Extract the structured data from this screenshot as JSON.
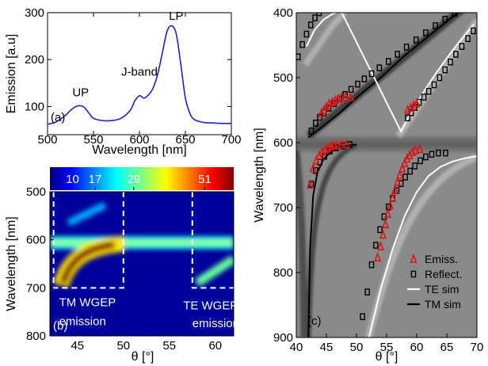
{
  "chart_data": [
    {
      "panel": "(a)",
      "type": "line",
      "xlabel": "Wavelength [nm]",
      "ylabel": "Emission [a.u]",
      "xlim": [
        500,
        700
      ],
      "ylim": [
        40,
        300
      ],
      "xticks": [
        500,
        550,
        600,
        650,
        700
      ],
      "yticks": [
        100,
        200,
        300
      ],
      "color": "#1f1fd6",
      "x": [
        500,
        510,
        520,
        525,
        530,
        535,
        540,
        545,
        550,
        560,
        570,
        580,
        590,
        595,
        600,
        605,
        610,
        615,
        620,
        625,
        630,
        635,
        640,
        645,
        650,
        655,
        660,
        670,
        680,
        690,
        700
      ],
      "y": [
        62,
        68,
        82,
        92,
        99,
        102,
        98,
        86,
        75,
        70,
        70,
        75,
        92,
        112,
        123,
        118,
        125,
        140,
        170,
        215,
        260,
        272,
        255,
        190,
        118,
        85,
        72,
        66,
        65,
        64,
        64
      ],
      "annotations": [
        {
          "text": "UP",
          "x": 536,
          "y": 122
        },
        {
          "text": "J-band",
          "x": 600,
          "y": 166
        },
        {
          "text": "LP",
          "x": 640,
          "y": 285
        }
      ]
    },
    {
      "panel": "(b)",
      "type": "heatmap",
      "xlabel": "θ [°]",
      "ylabel": "Wavelength [nm]",
      "xlim": [
        42,
        62
      ],
      "ylim": [
        800,
        500
      ],
      "xticks": [
        45,
        50,
        55,
        60
      ],
      "yticks": [
        500,
        600,
        700,
        800
      ],
      "colorbar_ticks": [
        10,
        17,
        29,
        51
      ],
      "colorbar_range": [
        3,
        60
      ],
      "colormap": "jet",
      "features": [
        {
          "name": "main band",
          "x": [
            42,
            62
          ],
          "y": 606,
          "value": 25
        },
        {
          "name": "TM WGEP emission",
          "x": [
            43,
            50
          ],
          "y": [
            690,
            610
          ],
          "value": 60
        },
        {
          "name": "upper TM",
          "x": [
            44,
            48
          ],
          "y": [
            560,
            530
          ],
          "value": 20
        },
        {
          "name": "TE WGEP emission",
          "x": [
            58,
            62
          ],
          "y": [
            690,
            640
          ],
          "value": 30
        }
      ],
      "annotations": [
        {
          "text": "TM WGEP",
          "x": 43,
          "y": 738
        },
        {
          "text": "emission",
          "x": 43,
          "y": 778
        },
        {
          "text": "TE WGEP",
          "x": 56.5,
          "y": 745
        },
        {
          "text": "emission",
          "x": 57.5,
          "y": 782
        }
      ]
    },
    {
      "panel": "(c)",
      "type": "scatter",
      "xlabel": "θ [°]",
      "ylabel": "Wavelength [nm]",
      "xlim": [
        40,
        70
      ],
      "ylim": [
        900,
        400
      ],
      "xticks": [
        40,
        45,
        50,
        55,
        60,
        65,
        70
      ],
      "yticks": [
        400,
        500,
        600,
        700,
        800,
        900
      ],
      "series": [
        {
          "name": "Emiss.",
          "marker": "triangle",
          "color": "#e01010",
          "x": [
            44.2,
            44.6,
            45.0,
            45.5,
            46.0,
            46.5,
            47.0,
            47.5,
            48.2,
            49.0,
            58.5,
            59.0,
            59.5,
            60.0,
            42.3,
            42.8,
            43.3,
            43.8,
            44.3,
            44.8,
            45.3,
            45.8,
            46.3,
            46.8,
            47.5,
            48.3,
            53.5,
            54.0,
            54.4,
            54.8,
            55.2,
            55.6,
            56.0,
            56.4,
            56.8,
            57.2,
            57.6,
            58.0,
            58.4,
            58.8,
            59.3,
            59.8,
            60.5
          ],
          "y": [
            555,
            550,
            545,
            540,
            538,
            535,
            533,
            531,
            530,
            530,
            550,
            547,
            543,
            540,
            665,
            640,
            628,
            620,
            615,
            611,
            608,
            606,
            605,
            604,
            603,
            603,
            777,
            760,
            742,
            726,
            710,
            697,
            685,
            673,
            661,
            650,
            640,
            632,
            625,
            620,
            615,
            612,
            610
          ]
        },
        {
          "name": "Reflect.",
          "marker": "square",
          "color": "#000000",
          "x": [
            40.3,
            41.0,
            41.7,
            42.4,
            43.1,
            43.8,
            44.5,
            45.3,
            46.2,
            42.5,
            43.2,
            43.9,
            44.6,
            45.4,
            46.3,
            47.2,
            48.1,
            49.1,
            50.2,
            51.3,
            52.5,
            53.8,
            55.3,
            56.8,
            58.3,
            59.9,
            61.5,
            63.1,
            64.7,
            66.3,
            67.8,
            69.0,
            58.5,
            59.1,
            59.7,
            60.4,
            61.2,
            62.0,
            62.9,
            63.8,
            64.7,
            65.6,
            66.5,
            67.5,
            68.5,
            69.4,
            42.5,
            43.2,
            43.9,
            44.7,
            45.6,
            46.6,
            47.7,
            48.9,
            51.0,
            51.8,
            52.5,
            53.2,
            53.9,
            54.6,
            55.3,
            56.0,
            56.7,
            57.4,
            58.1,
            58.9,
            59.7,
            60.6,
            61.5,
            62.5,
            63.6,
            64.8
          ],
          "y": [
            468,
            449,
            433,
            419,
            408,
            400,
            394,
            391,
            389,
            582,
            570,
            561,
            554,
            547,
            540,
            533,
            526,
            518,
            510,
            502,
            494,
            485,
            475,
            464,
            453,
            442,
            431,
            420,
            410,
            401,
            394,
            388,
            562,
            554,
            546,
            538,
            530,
            521,
            511,
            500,
            488,
            476,
            464,
            452,
            440,
            428,
            664,
            643,
            630,
            621,
            613,
            608,
            605,
            603,
            868,
            830,
            788,
            758,
            734,
            714,
            699,
            686,
            674,
            663,
            653,
            644,
            636,
            628,
            622,
            618,
            616,
            616
          ]
        },
        {
          "name": "TE sim",
          "line": "white",
          "color": "#ffffff",
          "x": [
            41.7,
            43.0,
            44.5,
            46.0,
            47.4,
            57.4,
            58.5,
            60.0,
            61.5,
            63.0,
            65.0,
            67.0,
            69.5,
            52.0,
            54.0,
            56.0,
            58.0,
            60.0,
            62.0,
            64.0,
            66.0,
            68.0,
            70.0
          ],
          "y": [
            452,
            427,
            411,
            402,
            397,
            583,
            563,
            540,
            517,
            496,
            470,
            446,
            418,
            903,
            826,
            764,
            713,
            676,
            651,
            637,
            629,
            624,
            621
          ]
        },
        {
          "name": "TM sim",
          "line": "black",
          "color": "#000000",
          "x": [
            42.0,
            44.0,
            47.0,
            50.0,
            54.0,
            58.0,
            62.0,
            66.0,
            70.0,
            42.0,
            42.3,
            42.8,
            43.5,
            44.5,
            46.0,
            48.0,
            50.0
          ],
          "y": [
            592,
            578,
            556,
            531,
            500,
            466,
            436,
            406,
            378,
            900,
            760,
            682,
            646,
            626,
            612,
            605,
            603
          ]
        }
      ],
      "legend": {
        "placement": "bottom-right",
        "entries": [
          "Emiss.",
          "Reflect.",
          "TE sim",
          "TM sim"
        ]
      }
    }
  ]
}
